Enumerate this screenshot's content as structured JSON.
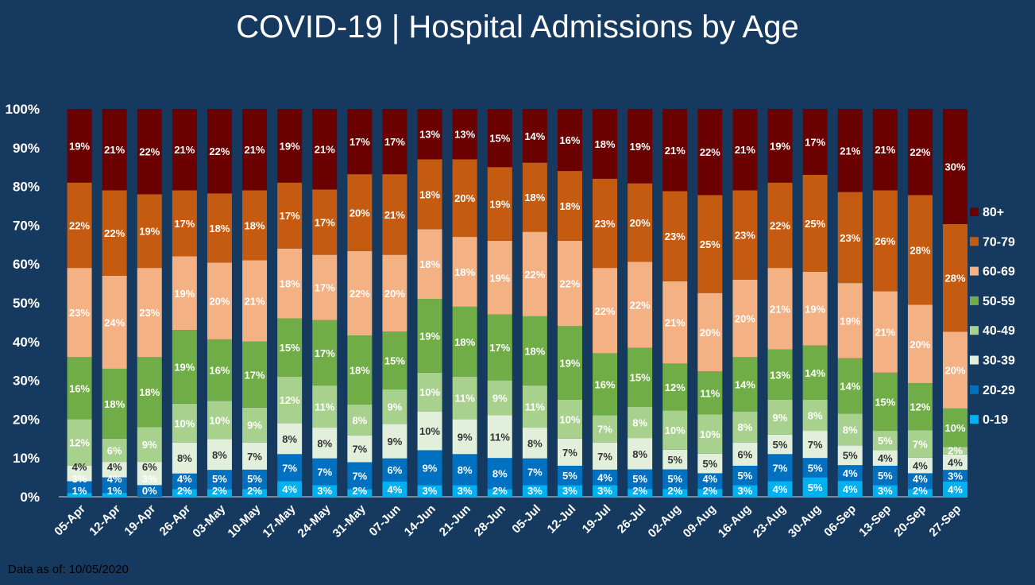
{
  "chart_data": {
    "type": "bar",
    "stacked": true,
    "percent": true,
    "title": "COVID-19 | Hospital Admissions by Age",
    "footnote": "Data as of: 10/05/2020",
    "ylim": [
      0,
      100
    ],
    "yticks": [
      "0%",
      "10%",
      "20%",
      "30%",
      "40%",
      "50%",
      "60%",
      "70%",
      "80%",
      "90%",
      "100%"
    ],
    "legend_position": "right",
    "categories": [
      "05-Apr",
      "12-Apr",
      "19-Apr",
      "26-Apr",
      "03-May",
      "10-May",
      "17-May",
      "24-May",
      "31-May",
      "07-Jun",
      "14-Jun",
      "21-Jun",
      "28-Jun",
      "05-Jul",
      "12-Jul",
      "19-Jul",
      "26-Jul",
      "02-Aug",
      "09-Aug",
      "16-Aug",
      "23-Aug",
      "30-Aug",
      "06-Sep",
      "13-Sep",
      "20-Sep",
      "27-Sep"
    ],
    "series": [
      {
        "name": "0-19",
        "color": "#00b0f0",
        "label_color": "#ffffff",
        "values": [
          1,
          1,
          0,
          2,
          2,
          2,
          4,
          3,
          2,
          4,
          3,
          3,
          2,
          3,
          3,
          3,
          2,
          2,
          2,
          3,
          4,
          5,
          4,
          3,
          2,
          4
        ]
      },
      {
        "name": "20-29",
        "color": "#0070c0",
        "label_color": "#ffffff",
        "values": [
          3,
          4,
          3,
          4,
          5,
          5,
          7,
          7,
          7,
          6,
          9,
          8,
          8,
          7,
          5,
          4,
          5,
          5,
          4,
          5,
          7,
          5,
          4,
          5,
          4,
          3
        ]
      },
      {
        "name": "30-39",
        "color": "#e2efda",
        "label_color": "#333333",
        "values": [
          4,
          4,
          6,
          8,
          8,
          7,
          8,
          8,
          7,
          9,
          10,
          9,
          11,
          8,
          7,
          7,
          8,
          5,
          5,
          6,
          5,
          7,
          5,
          4,
          4,
          4
        ]
      },
      {
        "name": "40-49",
        "color": "#a9d18e",
        "label_color": "#ffffff",
        "values": [
          12,
          6,
          9,
          10,
          10,
          9,
          12,
          11,
          8,
          9,
          10,
          11,
          9,
          11,
          10,
          7,
          8,
          10,
          10,
          8,
          9,
          8,
          8,
          5,
          7,
          2
        ]
      },
      {
        "name": "50-59",
        "color": "#70ad47",
        "label_color": "#ffffff",
        "values": [
          16,
          18,
          18,
          19,
          16,
          17,
          15,
          17,
          18,
          15,
          19,
          18,
          17,
          18,
          19,
          16,
          15,
          12,
          11,
          14,
          13,
          14,
          14,
          15,
          12,
          10
        ]
      },
      {
        "name": "60-69",
        "color": "#f4b183",
        "label_color": "#ffffff",
        "values": [
          23,
          24,
          23,
          19,
          20,
          21,
          18,
          17,
          22,
          20,
          18,
          18,
          19,
          22,
          22,
          22,
          22,
          21,
          20,
          20,
          21,
          19,
          19,
          21,
          20,
          20
        ]
      },
      {
        "name": "70-79",
        "color": "#c55a11",
        "label_color": "#ffffff",
        "values": [
          22,
          22,
          19,
          17,
          18,
          18,
          17,
          17,
          20,
          21,
          18,
          20,
          19,
          18,
          18,
          23,
          20,
          23,
          25,
          23,
          22,
          25,
          23,
          26,
          28,
          28
        ]
      },
      {
        "name": "80+",
        "color": "#6b0000",
        "label_color": "#ffffff",
        "values": [
          19,
          21,
          22,
          21,
          22,
          21,
          19,
          21,
          17,
          17,
          13,
          13,
          15,
          14,
          16,
          18,
          19,
          21,
          22,
          21,
          19,
          17,
          21,
          21,
          22,
          30
        ]
      }
    ]
  }
}
